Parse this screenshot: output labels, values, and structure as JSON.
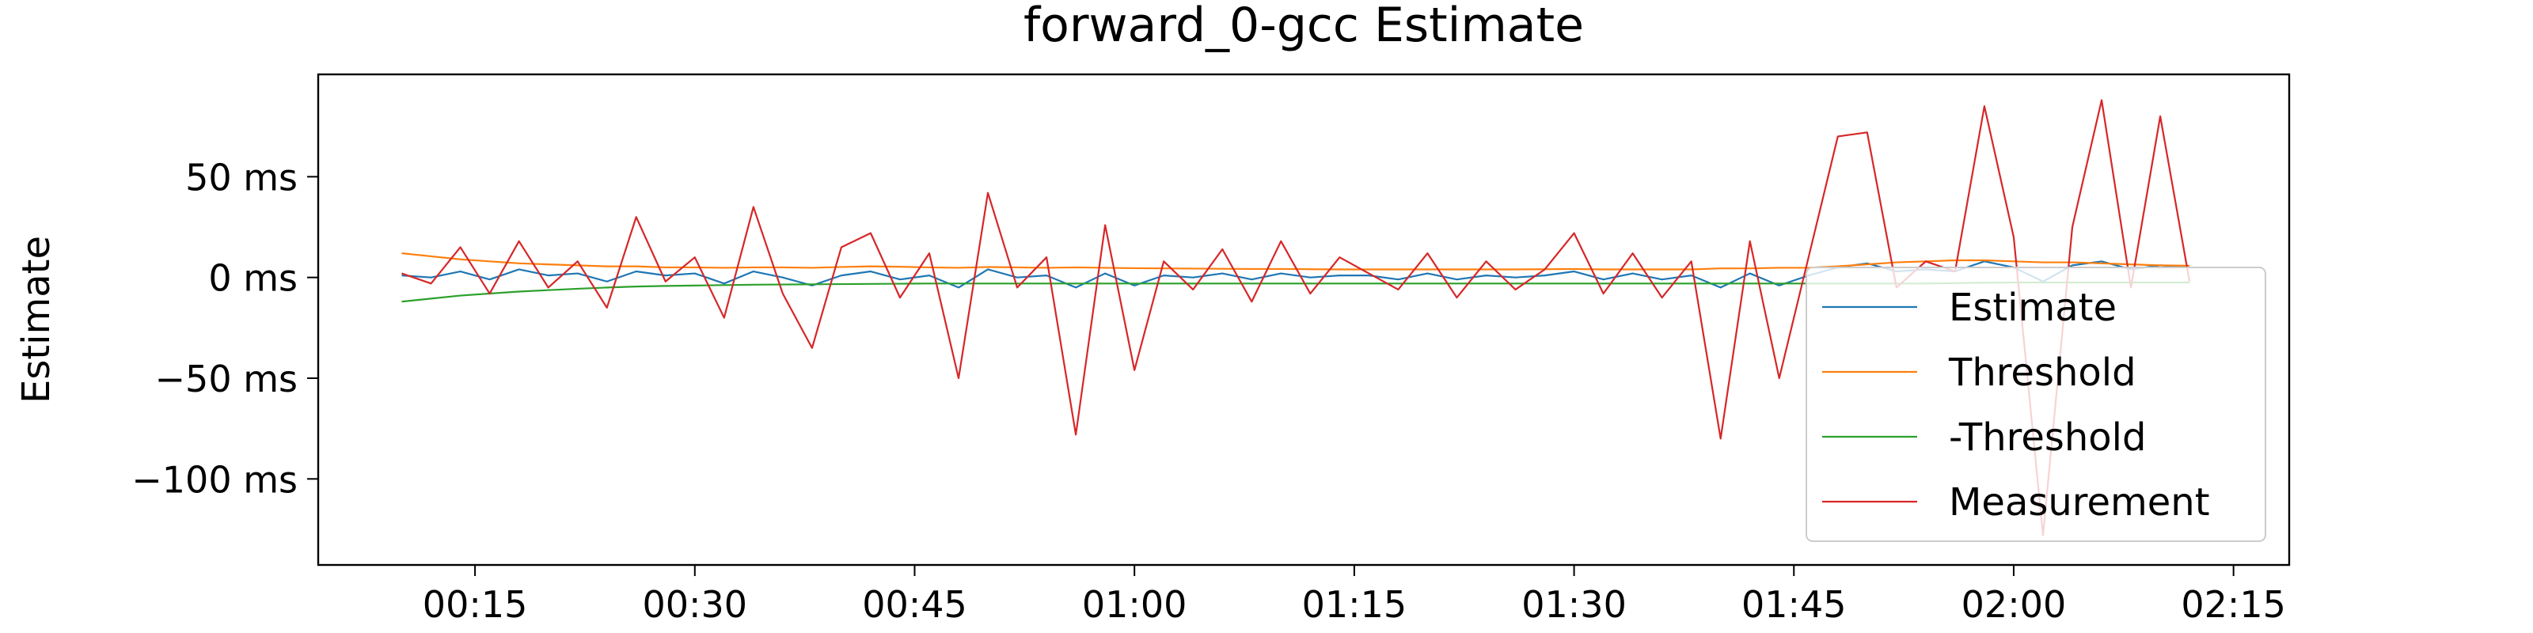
{
  "chart_data": {
    "type": "line",
    "title": "forward_0-gcc Estimate",
    "y_label": "Estimate",
    "x": [
      10,
      12,
      14,
      16,
      18,
      20,
      22,
      24,
      26,
      28,
      30,
      32,
      34,
      36,
      38,
      40,
      42,
      44,
      46,
      48,
      50,
      52,
      54,
      56,
      58,
      60,
      62,
      64,
      66,
      68,
      70,
      72,
      74,
      76,
      78,
      80,
      82,
      84,
      86,
      88,
      90,
      92,
      94,
      96,
      98,
      100,
      102,
      104,
      106,
      108,
      110,
      112,
      114,
      116,
      118,
      120,
      122,
      124,
      126,
      128,
      130,
      132
    ],
    "series": [
      {
        "name": "Estimate",
        "color": "#1f77b4",
        "values": [
          1,
          0,
          3,
          -1,
          4,
          1,
          2,
          -2,
          3,
          1,
          2,
          -3,
          3,
          0,
          -4,
          1,
          3,
          -1,
          1,
          -5,
          4,
          0,
          1,
          -5,
          2,
          -4,
          1,
          0,
          2,
          -1,
          2,
          0,
          1,
          1,
          -1,
          2,
          -1,
          1,
          0,
          1,
          3,
          -1,
          2,
          -1,
          1,
          -5,
          2,
          -4,
          1,
          5,
          7,
          3,
          4,
          3,
          8,
          5,
          -2,
          6,
          8,
          4,
          6,
          5
        ]
      },
      {
        "name": "Threshold",
        "color": "#ff7f0e",
        "values": [
          12,
          10.5,
          9,
          8,
          7,
          6.5,
          6,
          5.5,
          5.5,
          5,
          5,
          4.8,
          5,
          5,
          4.8,
          5.2,
          5.5,
          5.3,
          5,
          4.8,
          5.2,
          5,
          4.8,
          5,
          4.8,
          4.6,
          4.5,
          4.4,
          4.3,
          4.2,
          4.2,
          4.1,
          4,
          4,
          4,
          4,
          4,
          4,
          4,
          4.1,
          4.2,
          4,
          4,
          4,
          4,
          4.5,
          4.5,
          4.8,
          4.8,
          5.5,
          6.5,
          7.5,
          8,
          8.5,
          8.5,
          8,
          7.5,
          7.5,
          7,
          6.5,
          6,
          5.8
        ]
      },
      {
        "name": "-Threshold",
        "color": "#2ca02c",
        "values": [
          -12,
          -10.5,
          -9,
          -8,
          -7,
          -6.3,
          -5.6,
          -5,
          -4.5,
          -4.2,
          -4,
          -3.8,
          -3.6,
          -3.5,
          -3.4,
          -3.3,
          -3.2,
          -3.1,
          -3,
          -3,
          -3,
          -3,
          -3,
          -3,
          -3,
          -3,
          -3,
          -3,
          -3,
          -3,
          -3,
          -3,
          -3,
          -3,
          -3,
          -3,
          -3,
          -3,
          -3,
          -3,
          -3,
          -3,
          -3,
          -3,
          -3,
          -3,
          -3,
          -3,
          -3,
          -3,
          -3,
          -3,
          -3,
          -2.8,
          -2.6,
          -2.5,
          -2.5,
          -2.5,
          -2.5,
          -2.5,
          -2.5,
          -2.5
        ]
      },
      {
        "name": "Measurement",
        "color": "#d62728",
        "values": [
          2,
          -3,
          15,
          -8,
          18,
          -5,
          8,
          -15,
          30,
          -2,
          10,
          -20,
          35,
          -8,
          -35,
          15,
          22,
          -10,
          12,
          -50,
          42,
          -5,
          10,
          -78,
          26,
          -46,
          8,
          -6,
          14,
          -12,
          18,
          -8,
          10,
          2,
          -6,
          12,
          -10,
          8,
          -6,
          4,
          22,
          -8,
          12,
          -10,
          8,
          -80,
          18,
          -50,
          10,
          70,
          72,
          -5,
          8,
          3,
          85,
          20,
          -128,
          25,
          88,
          -5,
          80,
          -2
        ]
      }
    ],
    "xlim": [
      4.3,
      138.8
    ],
    "xticks": [
      {
        "value": 15,
        "label": "00:15"
      },
      {
        "value": 30,
        "label": "00:30"
      },
      {
        "value": 45,
        "label": "00:45"
      },
      {
        "value": 60,
        "label": "01:00"
      },
      {
        "value": 75,
        "label": "01:15"
      },
      {
        "value": 90,
        "label": "01:30"
      },
      {
        "value": 105,
        "label": "01:45"
      },
      {
        "value": 120,
        "label": "02:00"
      },
      {
        "value": 135,
        "label": "02:15"
      }
    ],
    "ylim": [
      -142.7,
      100.8
    ],
    "yticks": [
      {
        "value": 50,
        "label": "50 ms"
      },
      {
        "value": 0,
        "label": "0 ms"
      },
      {
        "value": -50,
        "label": "−50 ms"
      },
      {
        "value": -100,
        "label": "−100 ms"
      }
    ],
    "legend": "lower right",
    "grid": false
  }
}
